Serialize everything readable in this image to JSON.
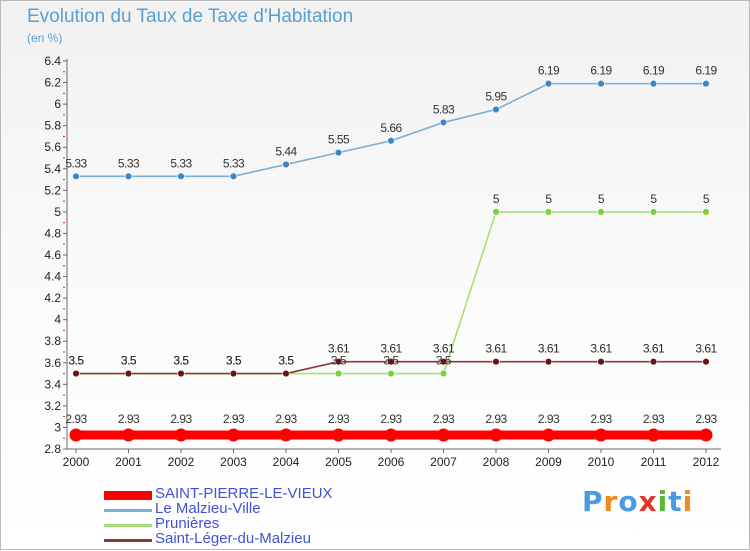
{
  "header": {
    "title": "Evolution du Taux de Taxe d'Habitation",
    "unit": "(en %)"
  },
  "chart_data": {
    "type": "line",
    "title": "Evolution du Taux de Taxe d'Habitation",
    "ylabel": "(en %)",
    "xlabel": "",
    "x": [
      "2000",
      "2001",
      "2002",
      "2003",
      "2004",
      "2005",
      "2006",
      "2007",
      "2008",
      "2009",
      "2010",
      "2011",
      "2012"
    ],
    "ylim": [
      2.8,
      6.4
    ],
    "ytick_step": 0.2,
    "grid": false,
    "legend_position": "bottom-left",
    "series": [
      {
        "name": "SAINT-PIERRE-LE-VIEUX",
        "color": "#ff0000",
        "emphasis": "thick",
        "values": [
          2.93,
          2.93,
          2.93,
          2.93,
          2.93,
          2.93,
          2.93,
          2.93,
          2.93,
          2.93,
          2.93,
          2.93,
          2.93
        ],
        "labels": [
          "2.93",
          "2.93",
          "2.93",
          "2.93",
          "2.93",
          "2.93",
          "2.93",
          "2.93",
          "2.93",
          "2.93",
          "2.93",
          "2.93",
          "2.93"
        ]
      },
      {
        "name": "Le Malzieu-Ville",
        "color": "#7bafd6",
        "marker_color": "#3d85c4",
        "values": [
          5.33,
          5.33,
          5.33,
          5.33,
          5.44,
          5.55,
          5.66,
          5.83,
          5.95,
          6.19,
          6.19,
          6.19,
          6.19
        ],
        "labels": [
          "5.33",
          "5.33",
          "5.33",
          "5.33",
          "5.44",
          "5.55",
          "5.66",
          "5.83",
          "5.95",
          "6.19",
          "6.19",
          "6.19",
          "6.19"
        ]
      },
      {
        "name": "Prunières",
        "color": "#a7df7c",
        "marker_color": "#7bd13a",
        "values": [
          3.5,
          3.5,
          3.5,
          3.5,
          3.5,
          3.5,
          3.5,
          3.5,
          5,
          5,
          5,
          5,
          5
        ],
        "labels": [
          "3.5",
          "3.5",
          "3.5",
          "3.5",
          "3.5",
          "3.5",
          "3.5",
          "3.5",
          "5",
          "5",
          "5",
          "5",
          "5"
        ]
      },
      {
        "name": "Saint-Léger-du-Malzieu",
        "color": "#8a3a3a",
        "marker_color": "#6a1313",
        "values": [
          3.5,
          3.5,
          3.5,
          3.5,
          3.5,
          3.61,
          3.61,
          3.61,
          3.61,
          3.61,
          3.61,
          3.61,
          3.61
        ],
        "labels": [
          "3.5",
          "3.5",
          "3.5",
          "3.5",
          "3.5",
          "3.61",
          "3.61",
          "3.61",
          "3.61",
          "3.61",
          "3.61",
          "3.61",
          "3.61"
        ]
      }
    ]
  },
  "logo": {
    "text": "Proxiti",
    "letter_colors": [
      "#4a9be0",
      "#f08a1c",
      "#4a9be0",
      "#e03a2a",
      "#5cb832",
      "#4a9be0",
      "#f08a1c"
    ]
  }
}
